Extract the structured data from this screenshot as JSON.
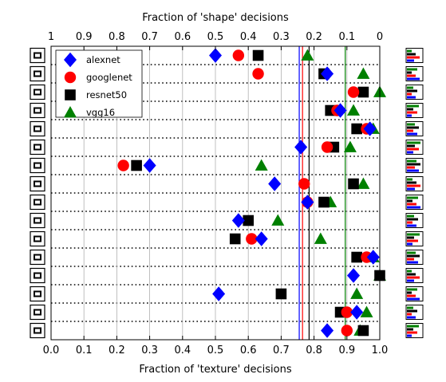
{
  "chart_data": {
    "type": "scatter",
    "title": "",
    "xlabel": "Fraction of 'texture' decisions",
    "x2label": "Fraction of 'shape' decisions",
    "xlim": [
      0,
      1
    ],
    "xticks": [
      "0.0",
      "0.1",
      "0.2",
      "0.3",
      "0.4",
      "0.5",
      "0.6",
      "0.7",
      "0.8",
      "0.9",
      "1.0"
    ],
    "x2ticks": [
      "1",
      "0.9",
      "0.8",
      "0.7",
      "0.6",
      "0.5",
      "0.4",
      "0.3",
      "0.2",
      "0.1",
      "0"
    ],
    "grid_x": true,
    "legend_position": "top-left",
    "categories": [
      "truck",
      "bottle",
      "knife",
      "oven",
      "elephant",
      "dog",
      "clock",
      "chair",
      "cat",
      "car",
      "bottle",
      "boat",
      "bird",
      "bicycle",
      "bear",
      "airplane"
    ],
    "category_icons": [
      "truck-icon",
      "bottle-icon",
      "knife-icon",
      "oven-icon",
      "elephant-icon",
      "dog-icon",
      "clock-icon",
      "chair-icon",
      "cat-icon",
      "car-icon",
      "bottle-icon",
      "boat-icon",
      "bird-icon",
      "bicycle-icon",
      "bear-icon",
      "airplane-icon"
    ],
    "series": [
      {
        "name": "alexnet",
        "marker": "diamond",
        "color": "#0000ff",
        "values": [
          0.5,
          0.84,
          null,
          0.88,
          0.97,
          0.76,
          0.3,
          0.68,
          0.78,
          0.57,
          0.64,
          0.98,
          0.92,
          0.51,
          0.93,
          0.84
        ]
      },
      {
        "name": "googlenet",
        "marker": "circle",
        "color": "#ff0000",
        "values": [
          0.57,
          0.63,
          0.92,
          0.87,
          0.96,
          0.84,
          0.22,
          0.77,
          0.78,
          null,
          0.61,
          0.96,
          null,
          null,
          0.9,
          0.9
        ]
      },
      {
        "name": "resnet50",
        "marker": "square",
        "color": "#000000",
        "values": [
          0.63,
          0.83,
          0.95,
          0.85,
          0.93,
          0.86,
          0.26,
          0.92,
          0.83,
          0.6,
          0.56,
          0.93,
          1.0,
          0.7,
          0.88,
          0.95
        ]
      },
      {
        "name": "vgg16",
        "marker": "triangle",
        "color": "#008000",
        "values": [
          0.78,
          0.95,
          1.0,
          0.92,
          0.98,
          0.91,
          0.64,
          0.95,
          0.85,
          0.69,
          0.82,
          0.98,
          1.0,
          0.93,
          0.96,
          0.94
        ]
      }
    ],
    "vlines": [
      {
        "name": "alexnet",
        "x": 0.755,
        "color": "#0000ff"
      },
      {
        "name": "googlenet",
        "x": 0.765,
        "color": "#ff0000"
      },
      {
        "name": "resnet50",
        "x": 0.785,
        "color": "#000000"
      },
      {
        "name": "vgg16",
        "x": 0.895,
        "color": "#008000"
      }
    ]
  }
}
